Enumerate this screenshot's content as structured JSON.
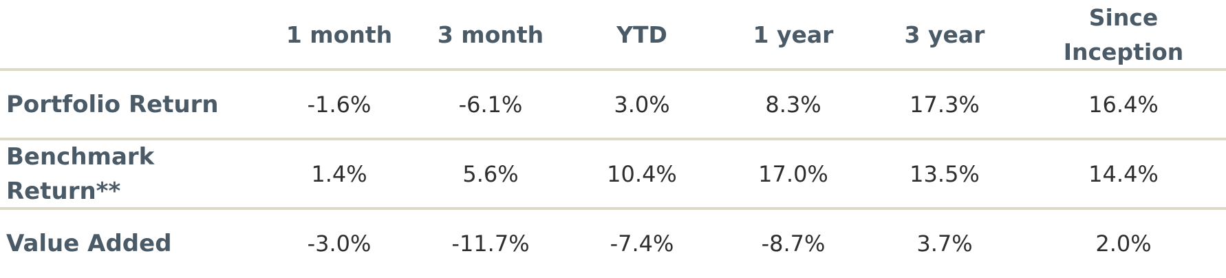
{
  "chart_data": {
    "type": "table",
    "columns": [
      "1 month",
      "3 month",
      "YTD",
      "1 year",
      "3 year",
      "Since Inception"
    ],
    "rows": [
      {
        "label": "Portfolio Return",
        "values": [
          "-1.6%",
          "-6.1%",
          "3.0%",
          "8.3%",
          "17.3%",
          "16.4%"
        ]
      },
      {
        "label": "Benchmark Return**",
        "values": [
          "1.4%",
          "5.6%",
          "10.4%",
          "17.0%",
          "13.5%",
          "14.4%"
        ]
      },
      {
        "label": "Value Added",
        "values": [
          "-3.0%",
          "-11.7%",
          "-7.4%",
          "-8.7%",
          "3.7%",
          "2.0%"
        ]
      }
    ]
  },
  "colors": {
    "text_header": "#4a5a67",
    "text_values": "#2e2e2e",
    "divider": "#ddd8c8",
    "background": "#ffffff"
  }
}
